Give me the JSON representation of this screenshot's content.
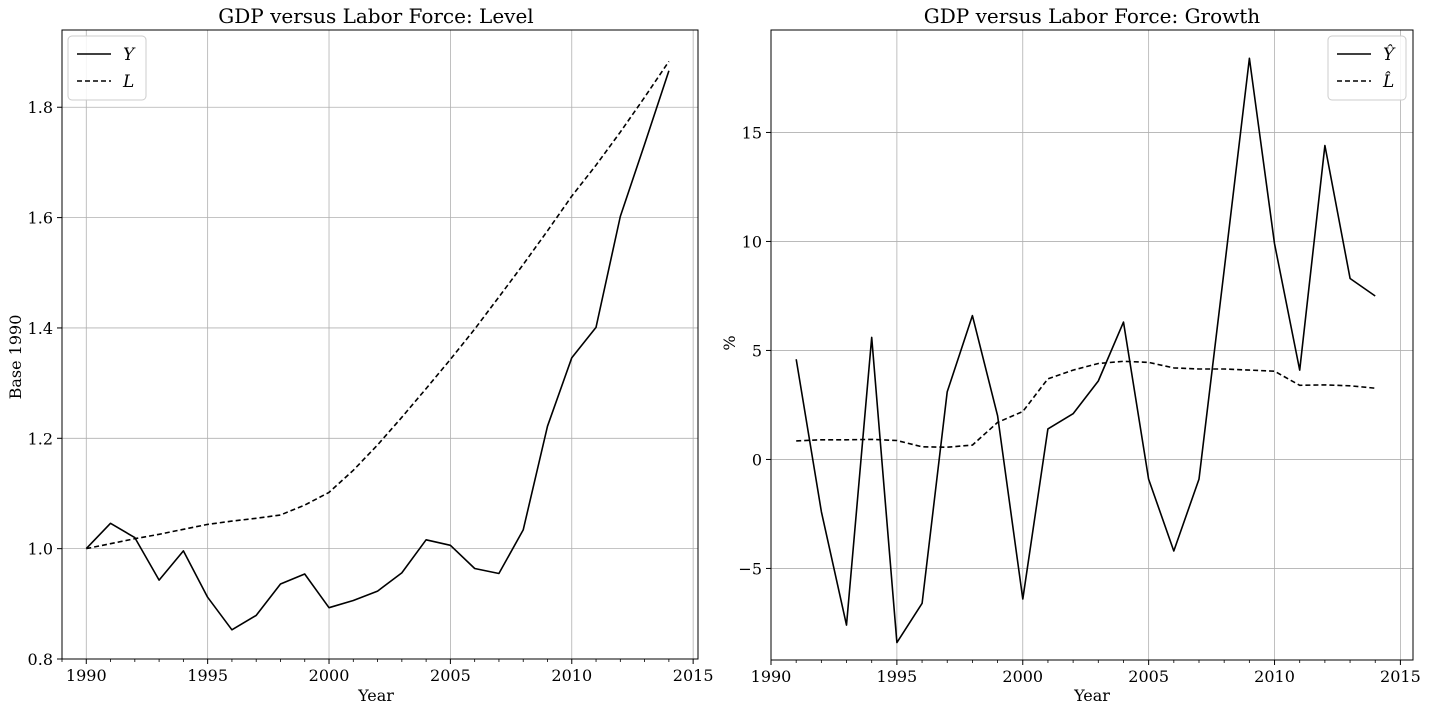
{
  "chart_data": [
    {
      "type": "line",
      "title": "GDP versus Labor Force: Level",
      "xlabel": "Year",
      "ylabel": "Base 1990",
      "xlim": [
        1989,
        2015.2
      ],
      "ylim": [
        0.8,
        1.94
      ],
      "xticks": [
        1990,
        1995,
        2000,
        2005,
        2010,
        2015
      ],
      "yticks": [
        0.8,
        1.0,
        1.2,
        1.4,
        1.6,
        1.8
      ],
      "ytick_labels": [
        "0.8",
        "1.0",
        "1.2",
        "1.4",
        "1.6",
        "1.8"
      ],
      "grid": true,
      "legend_position": "top-left",
      "x": [
        1990,
        1991,
        1992,
        1993,
        1994,
        1995,
        1996,
        1997,
        1998,
        1999,
        2000,
        2001,
        2002,
        2003,
        2004,
        2005,
        2006,
        2007,
        2008,
        2009,
        2010,
        2011,
        2012,
        2013,
        2014
      ],
      "series": [
        {
          "name": "Y",
          "style": "solid",
          "values": [
            1.0,
            1.046,
            1.02,
            0.943,
            0.996,
            0.912,
            0.853,
            0.879,
            0.936,
            0.954,
            0.893,
            0.906,
            0.923,
            0.956,
            1.016,
            1.006,
            0.964,
            0.955,
            1.034,
            1.222,
            1.346,
            1.401,
            1.602,
            1.733,
            1.866
          ]
        },
        {
          "name": "L",
          "style": "dashed",
          "values": [
            1.0,
            1.009,
            1.018,
            1.026,
            1.035,
            1.044,
            1.05,
            1.055,
            1.061,
            1.079,
            1.102,
            1.142,
            1.188,
            1.238,
            1.29,
            1.343,
            1.398,
            1.456,
            1.515,
            1.576,
            1.639,
            1.695,
            1.755,
            1.818,
            1.883
          ]
        }
      ]
    },
    {
      "type": "line",
      "title": "GDP versus Labor Force: Growth",
      "xlabel": "Year",
      "ylabel": "%",
      "xlim": [
        1990,
        2015.5
      ],
      "ylim": [
        -9.2,
        19.7
      ],
      "xticks": [
        1990,
        1995,
        2000,
        2005,
        2010,
        2015
      ],
      "yticks": [
        -5,
        0,
        5,
        10,
        15
      ],
      "ytick_labels": [
        "−5",
        "0",
        "5",
        "10",
        "15"
      ],
      "grid": true,
      "legend_position": "top-right",
      "x": [
        1991,
        1992,
        1993,
        1994,
        1995,
        1996,
        1997,
        1998,
        1999,
        2000,
        2001,
        2002,
        2003,
        2004,
        2005,
        2006,
        2007,
        2008,
        2009,
        2010,
        2011,
        2012,
        2013,
        2014
      ],
      "series": [
        {
          "name": "Ŷ",
          "style": "solid",
          "values": [
            4.6,
            -2.4,
            -7.6,
            5.6,
            -8.4,
            -6.6,
            3.1,
            6.6,
            2.0,
            -6.4,
            1.4,
            2.1,
            3.6,
            6.3,
            -0.9,
            -4.2,
            -0.9,
            8.7,
            18.4,
            9.9,
            4.1,
            14.4,
            8.3,
            7.5
          ]
        },
        {
          "name": "L̂",
          "style": "dashed",
          "values": [
            0.85,
            0.9,
            0.9,
            0.92,
            0.87,
            0.58,
            0.56,
            0.66,
            1.7,
            2.2,
            3.7,
            4.1,
            4.4,
            4.5,
            4.45,
            4.2,
            4.15,
            4.15,
            4.1,
            4.05,
            3.4,
            3.42,
            3.38,
            3.27
          ]
        }
      ]
    }
  ]
}
